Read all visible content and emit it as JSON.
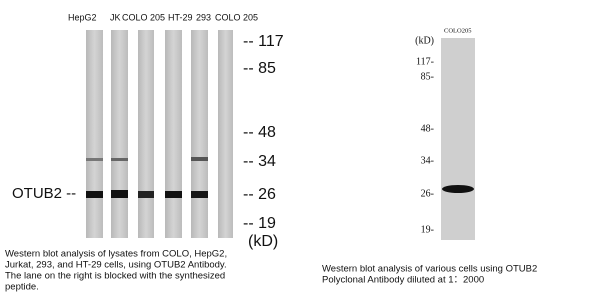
{
  "left_panel": {
    "lane_labels": [
      "HepG2",
      "JK",
      "COLO 205",
      "HT-29",
      "293",
      "COLO 205"
    ],
    "protein_label": "OTUB2 --",
    "markers": [
      "-- 117",
      "-- 85",
      "-- 48",
      "-- 34",
      "-- 26",
      "-- 19"
    ],
    "unit": "(kD)",
    "caption": [
      "Western blot analysis of lysates from COLO, HepG2,",
      "Jurkat, 293, and HT-29 cells, using OTUB2 Antibody.",
      "The lane on the right is blocked with the synthesized",
      "peptide."
    ]
  },
  "right_panel": {
    "lane_label": "COLO205",
    "unit": "(kD)",
    "markers": [
      "117-",
      "85-",
      "48-",
      "34-",
      "26-",
      "19-"
    ],
    "caption": [
      "Western blot analysis of various cells using OTUB2",
      "Polyclonal Antibody diluted at 1：2000"
    ]
  }
}
